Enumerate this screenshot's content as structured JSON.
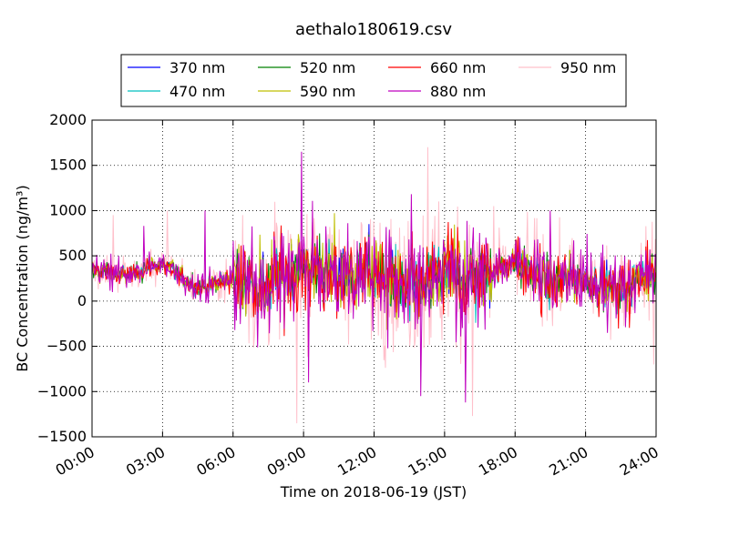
{
  "chart_data": {
    "type": "line",
    "title": "aethalo180619.csv",
    "xlabel": "Time on 2018-06-19 (JST)",
    "ylabel": "BC Concentration (ng/m³)",
    "xlim": [
      0,
      24
    ],
    "ylim": [
      -1500,
      2000
    ],
    "x_ticks": [
      "00:00",
      "03:00",
      "06:00",
      "09:00",
      "12:00",
      "15:00",
      "18:00",
      "21:00",
      "24:00"
    ],
    "y_ticks": [
      -1500,
      -1000,
      -500,
      0,
      500,
      1000,
      1500,
      2000
    ],
    "grid": true,
    "legend_position": "top",
    "series": [
      {
        "name": "370 nm",
        "color": "#0000ff"
      },
      {
        "name": "470 nm",
        "color": "#00bfbf"
      },
      {
        "name": "520 nm",
        "color": "#008000"
      },
      {
        "name": "590 nm",
        "color": "#bfbf00"
      },
      {
        "name": "660 nm",
        "color": "#ff0000"
      },
      {
        "name": "880 nm",
        "color": "#bf00bf"
      },
      {
        "name": "950 nm",
        "color": "#ffc0cb"
      }
    ],
    "highlights": [
      {
        "x": 0.9,
        "y": 950
      },
      {
        "x": 2.2,
        "y": 830
      },
      {
        "x": 3.2,
        "y": 1000
      },
      {
        "x": 4.8,
        "y": 1000
      },
      {
        "x": 6.4,
        "y": 950
      },
      {
        "x": 8.9,
        "y": 1650
      },
      {
        "x": 8.7,
        "y": -1350
      },
      {
        "x": 9.2,
        "y": -900
      },
      {
        "x": 14.3,
        "y": 1700
      },
      {
        "x": 14.0,
        "y": -1050
      },
      {
        "x": 16.2,
        "y": -1270
      },
      {
        "x": 15.9,
        "y": -1120
      },
      {
        "x": 17.1,
        "y": 1050
      },
      {
        "x": 19.5,
        "y": 1000
      },
      {
        "x": 23.9,
        "y": -700
      }
    ]
  }
}
